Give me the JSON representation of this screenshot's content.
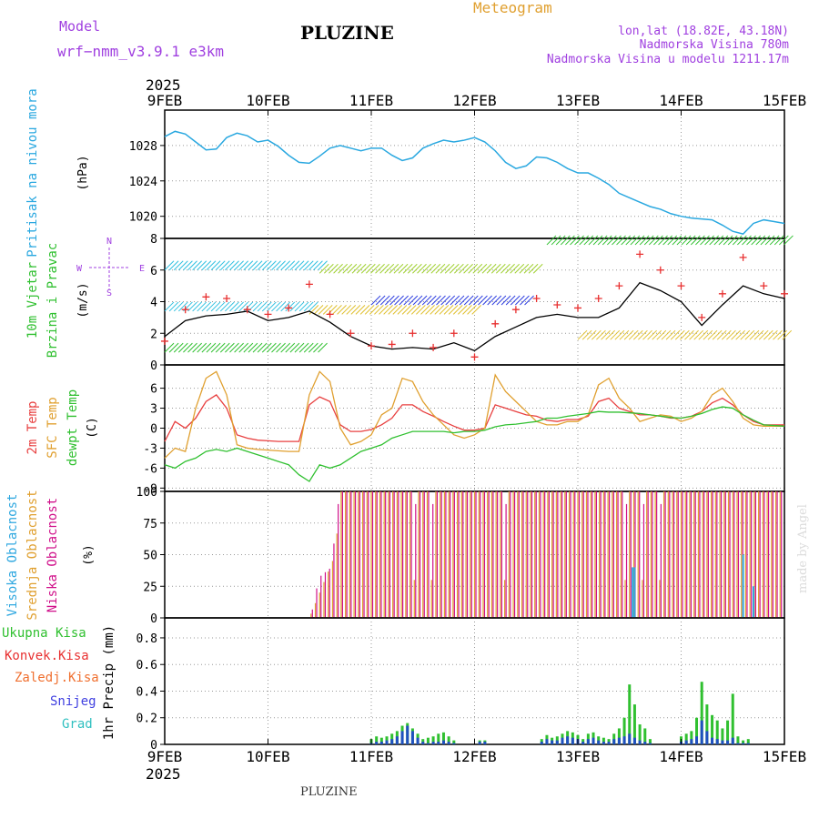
{
  "header": {
    "model_label": "Model",
    "model_name": "wrf−nmm_v3.9.1  e3km",
    "station": "PLUZINE",
    "meteogram": "Meteogram",
    "lonlat": "lon,lat (18.82E, 43.18N)",
    "elevation": "Nadmorska Visina 780m",
    "model_elevation": "Nadmorska Visina u modelu 1211.17m",
    "year_top": "2025",
    "year_bottom": "2025",
    "footer_station": "PLUZINE",
    "credit": "made by Angel"
  },
  "colors": {
    "pressure": "#2aa8e0",
    "wind_mean": "#000000",
    "gust": "#e83030",
    "temp2m": "#e84040",
    "sfc": "#e0a030",
    "dew": "#30c030",
    "high_cloud": "#30a8e0",
    "mid_cloud": "#e0a030",
    "low_cloud": "#d0108a",
    "precip_total": "#30c030",
    "precip_conv": "#2050c0",
    "purple": "#a040e0"
  },
  "chart_data": [
    {
      "type": "line",
      "id": "pressure",
      "ylabel_title": "Pritisak na nivou mora",
      "unit": "(hPa)",
      "yticks": [
        1020,
        1024,
        1028
      ],
      "ylim": [
        1017.5,
        1032.0
      ],
      "x_days": [
        0,
        0.1,
        0.2,
        0.3,
        0.4,
        0.5,
        0.6,
        0.7,
        0.8,
        0.9,
        1.0,
        1.1,
        1.2,
        1.3,
        1.4,
        1.5,
        1.6,
        1.7,
        1.8,
        1.9,
        2.0,
        2.1,
        2.2,
        2.3,
        2.4,
        2.5,
        2.6,
        2.7,
        2.8,
        2.9,
        3.0,
        3.1,
        3.2,
        3.3,
        3.4,
        3.5,
        3.6,
        3.7,
        3.8,
        3.9,
        4.0,
        4.1,
        4.2,
        4.3,
        4.4,
        4.5,
        4.6,
        4.7,
        4.8,
        4.9,
        5.0,
        5.1,
        5.2,
        5.3,
        5.4,
        5.5,
        5.6,
        5.7,
        5.8,
        5.9,
        6.0
      ],
      "values": [
        1029.0,
        1029.6,
        1029.3,
        1028.4,
        1027.5,
        1027.6,
        1028.9,
        1029.4,
        1029.1,
        1028.4,
        1028.6,
        1027.9,
        1026.9,
        1026.1,
        1026.0,
        1026.8,
        1027.7,
        1028.0,
        1027.7,
        1027.4,
        1027.7,
        1027.7,
        1026.9,
        1026.3,
        1026.6,
        1027.7,
        1028.2,
        1028.6,
        1028.4,
        1028.6,
        1028.9,
        1028.4,
        1027.4,
        1026.1,
        1025.4,
        1025.7,
        1026.7,
        1026.6,
        1026.1,
        1025.4,
        1024.9,
        1024.9,
        1024.3,
        1023.6,
        1022.6,
        1022.1,
        1021.6,
        1021.1,
        1020.8,
        1020.3,
        1020.0,
        1019.8,
        1019.7,
        1019.6,
        1019.0,
        1018.3,
        1018.0,
        1019.2,
        1019.6,
        1019.4,
        1019.2
      ]
    },
    {
      "type": "wind",
      "id": "wind",
      "ylabel_title": "10m Vjetar",
      "ylabel_sub": "Brzina i Pravac",
      "unit": "(m/s)",
      "compass": [
        "N",
        "E",
        "S",
        "W"
      ],
      "yticks": [
        0,
        2,
        4,
        6,
        8
      ],
      "ylim": [
        0,
        8
      ],
      "x_days": [
        0,
        0.2,
        0.4,
        0.6,
        0.8,
        1.0,
        1.2,
        1.4,
        1.6,
        1.8,
        2.0,
        2.2,
        2.4,
        2.6,
        2.8,
        3.0,
        3.2,
        3.4,
        3.6,
        3.8,
        4.0,
        4.2,
        4.4,
        4.6,
        4.8,
        5.0,
        5.2,
        5.4,
        5.6,
        5.8,
        6.0
      ],
      "mean_speed": [
        1.8,
        2.8,
        3.1,
        3.2,
        3.4,
        2.8,
        3.0,
        3.4,
        2.7,
        1.8,
        1.2,
        1.0,
        1.1,
        1.0,
        1.4,
        0.9,
        1.8,
        2.4,
        3.0,
        3.2,
        3.0,
        3.0,
        3.6,
        5.2,
        4.7,
        4.0,
        2.5,
        3.8,
        5.0,
        4.5,
        4.2
      ],
      "gust_speed": [
        1.5,
        3.5,
        4.3,
        4.2,
        3.5,
        3.2,
        3.6,
        5.1,
        3.2,
        2.0,
        1.2,
        1.3,
        2.0,
        1.1,
        2.0,
        0.5,
        2.6,
        3.5,
        4.2,
        3.8,
        3.6,
        4.2,
        5.0,
        7.0,
        6.0,
        5.0,
        3.0,
        4.5,
        6.8,
        5.0,
        4.5
      ]
    },
    {
      "type": "line",
      "id": "temperature",
      "ylabels": [
        "2m Temp",
        "SFC Temp",
        "dewpt Temp"
      ],
      "unit": "(C)",
      "yticks": [
        -9,
        -6,
        -3,
        0,
        3,
        6
      ],
      "ylim": [
        -9.5,
        9.5
      ],
      "x_days": [
        0,
        0.1,
        0.2,
        0.3,
        0.4,
        0.5,
        0.6,
        0.7,
        0.8,
        0.9,
        1.0,
        1.1,
        1.2,
        1.3,
        1.4,
        1.5,
        1.6,
        1.7,
        1.8,
        1.9,
        2.0,
        2.1,
        2.2,
        2.3,
        2.4,
        2.5,
        2.6,
        2.7,
        2.8,
        2.9,
        3.0,
        3.1,
        3.2,
        3.3,
        3.4,
        3.5,
        3.6,
        3.7,
        3.8,
        3.9,
        4.0,
        4.1,
        4.2,
        4.3,
        4.4,
        4.5,
        4.6,
        4.7,
        4.8,
        4.9,
        5.0,
        5.1,
        5.2,
        5.3,
        5.4,
        5.5,
        5.6,
        5.7,
        5.8,
        5.9,
        6.0
      ],
      "series": [
        {
          "name": "2m Temp",
          "values": [
            -2.0,
            1.0,
            0.0,
            1.5,
            4.0,
            5.0,
            3.0,
            -1.0,
            -1.5,
            -1.8,
            -1.9,
            -2.0,
            -2.0,
            -2.0,
            3.5,
            4.7,
            4.0,
            0.5,
            -0.5,
            -0.5,
            -0.2,
            0.5,
            1.5,
            3.5,
            3.5,
            2.5,
            1.8,
            1.0,
            0.3,
            -0.3,
            -0.3,
            0.0,
            3.5,
            3.0,
            2.5,
            2.0,
            1.8,
            1.2,
            1.0,
            1.3,
            1.3,
            1.8,
            4.0,
            4.5,
            3.0,
            2.5,
            2.0,
            2.0,
            1.8,
            1.5,
            1.5,
            1.8,
            2.5,
            3.8,
            4.5,
            3.5,
            2.0,
            1.0,
            0.5,
            0.5,
            0.5
          ]
        },
        {
          "name": "SFC Temp",
          "values": [
            -4.5,
            -3.0,
            -3.5,
            3.0,
            7.5,
            8.5,
            5.0,
            -2.5,
            -3.0,
            -3.2,
            -3.3,
            -3.4,
            -3.5,
            -3.5,
            5.0,
            8.5,
            7.0,
            0.0,
            -2.5,
            -2.0,
            -1.0,
            2.0,
            3.0,
            7.5,
            7.0,
            4.0,
            2.0,
            0.5,
            -1.0,
            -1.5,
            -1.0,
            0.0,
            8.0,
            5.5,
            4.0,
            2.5,
            1.0,
            0.5,
            0.5,
            1.0,
            1.0,
            2.0,
            6.5,
            7.5,
            4.5,
            3.0,
            1.0,
            1.5,
            2.0,
            1.8,
            1.0,
            1.5,
            2.5,
            5.0,
            6.0,
            4.0,
            1.5,
            0.5,
            0.3,
            0.3,
            0.3
          ]
        },
        {
          "name": "dewpt Temp",
          "values": [
            -5.5,
            -6.0,
            -5.0,
            -4.5,
            -3.5,
            -3.2,
            -3.5,
            -3.0,
            -3.5,
            -4.0,
            -4.5,
            -5.0,
            -5.5,
            -7.0,
            -8.0,
            -5.5,
            -6.0,
            -5.5,
            -4.5,
            -3.5,
            -3.0,
            -2.5,
            -1.5,
            -1.0,
            -0.5,
            -0.5,
            -0.5,
            -0.5,
            -0.7,
            -0.5,
            -0.5,
            -0.3,
            0.2,
            0.5,
            0.6,
            0.8,
            1.0,
            1.5,
            1.5,
            1.8,
            2.0,
            2.2,
            2.5,
            2.4,
            2.4,
            2.3,
            2.2,
            2.0,
            1.8,
            1.6,
            1.5,
            1.8,
            2.2,
            2.8,
            3.2,
            3.0,
            2.0,
            1.2,
            0.5,
            0.4,
            0.3
          ]
        }
      ]
    },
    {
      "type": "bar",
      "id": "clouds",
      "ylabels": [
        "Visoka Oblacnost",
        "Srednja Oblacnost",
        "Niska Oblacnost"
      ],
      "unit": "(%)",
      "yticks": [
        0,
        25,
        50,
        75,
        100
      ],
      "ylim": [
        0,
        100
      ],
      "notes": "Hourly cloud cover bars: zero until ~10FEB 12h, then mostly 100% for middle and low cloud with occasional dips; high cloud small.",
      "mid_cloud_profile": [
        [
          0,
          0
        ],
        [
          1.4,
          0
        ],
        [
          1.65,
          50
        ],
        [
          1.7,
          100
        ],
        [
          6.0,
          100
        ]
      ],
      "low_cloud_profile": [
        [
          0,
          0
        ],
        [
          1.4,
          0
        ],
        [
          1.48,
          32
        ],
        [
          1.6,
          40
        ],
        [
          1.68,
          100
        ],
        [
          6.0,
          100
        ]
      ],
      "high_cloud_spikes": [
        [
          4.53,
          40
        ],
        [
          4.55,
          40
        ],
        [
          5.6,
          50
        ],
        [
          5.7,
          25
        ]
      ]
    },
    {
      "type": "bar",
      "id": "precip",
      "ylabels": [
        "Ukupna Kisa",
        "Konvek.Kisa",
        "Zaledj.Kisa",
        "Snijeg",
        "Grad"
      ],
      "ylabel_unit": "1hr Precip (mm)",
      "yticks": [
        0,
        0.2,
        0.4,
        0.6,
        0.8
      ],
      "ylim": [
        0,
        0.95
      ],
      "x_days": [
        2.0,
        2.05,
        2.1,
        2.15,
        2.2,
        2.25,
        2.3,
        2.35,
        2.4,
        2.45,
        2.5,
        2.55,
        2.6,
        2.65,
        2.7,
        2.75,
        2.8,
        3.05,
        3.1,
        3.65,
        3.7,
        3.75,
        3.8,
        3.85,
        3.9,
        3.95,
        4.0,
        4.05,
        4.1,
        4.15,
        4.2,
        4.25,
        4.3,
        4.35,
        4.4,
        4.45,
        4.5,
        4.55,
        4.6,
        4.65,
        4.7,
        5.0,
        5.05,
        5.1,
        5.15,
        5.2,
        5.25,
        5.3,
        5.35,
        5.4,
        5.45,
        5.5,
        5.55,
        5.6,
        5.65
      ],
      "total": [
        0.04,
        0.06,
        0.05,
        0.06,
        0.08,
        0.1,
        0.14,
        0.16,
        0.12,
        0.08,
        0.04,
        0.05,
        0.06,
        0.08,
        0.09,
        0.06,
        0.03,
        0.03,
        0.03,
        0.04,
        0.07,
        0.05,
        0.06,
        0.08,
        0.1,
        0.09,
        0.07,
        0.04,
        0.08,
        0.09,
        0.06,
        0.05,
        0.04,
        0.08,
        0.12,
        0.2,
        0.45,
        0.3,
        0.15,
        0.12,
        0.04,
        0.06,
        0.08,
        0.1,
        0.2,
        0.47,
        0.3,
        0.22,
        0.18,
        0.12,
        0.18,
        0.38,
        0.06,
        0.03,
        0.04
      ],
      "convective": [
        0.01,
        0.02,
        0.02,
        0.03,
        0.04,
        0.06,
        0.1,
        0.14,
        0.1,
        0.05,
        0.02,
        0.01,
        0.02,
        0.02,
        0.03,
        0.02,
        0.01,
        0.02,
        0.02,
        0.02,
        0.04,
        0.03,
        0.03,
        0.05,
        0.06,
        0.05,
        0.04,
        0.02,
        0.04,
        0.05,
        0.03,
        0.02,
        0.02,
        0.04,
        0.05,
        0.06,
        0.08,
        0.05,
        0.03,
        0.02,
        0.01,
        0.02,
        0.03,
        0.04,
        0.06,
        0.18,
        0.1,
        0.05,
        0.04,
        0.03,
        0.03,
        0.05,
        0.01,
        0.01,
        0.01
      ]
    }
  ],
  "xaxis": {
    "days": [
      "9FEB",
      "10FEB",
      "11FEB",
      "12FEB",
      "13FEB",
      "14FEB",
      "15FEB"
    ]
  }
}
